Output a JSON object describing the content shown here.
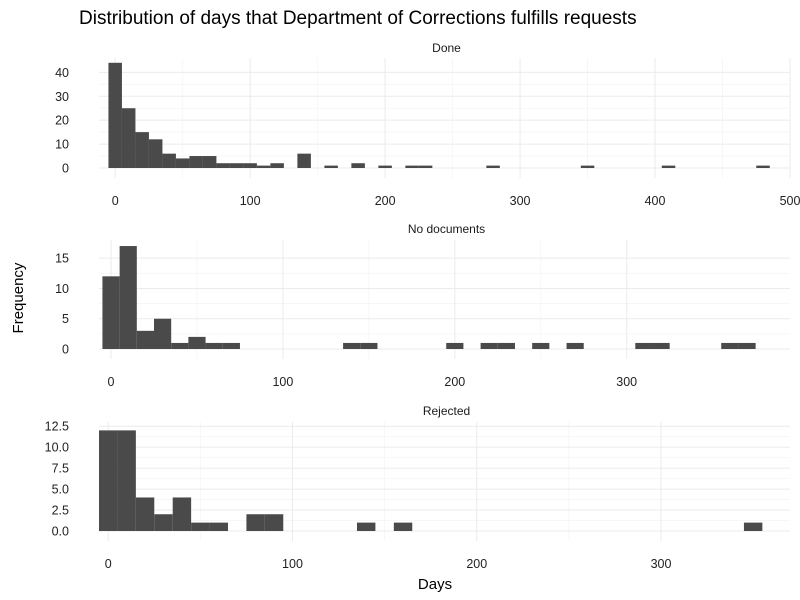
{
  "chart_data": {
    "type": "histogram",
    "title": "Distribution of days that Department of Corrections fulfills requests",
    "xlabel": "Days",
    "ylabel": "Frequency",
    "grid": true,
    "facet_scales": "free",
    "panels": [
      {
        "name": "Done",
        "bin_width": 10,
        "xlim": [
          -12,
          500
        ],
        "ylim": [
          0,
          46
        ],
        "x_breaks": [
          0,
          100,
          200,
          300,
          400,
          500
        ],
        "y_breaks": [
          0,
          10,
          20,
          30,
          40
        ],
        "y_tick_labels": [
          "0",
          "10",
          "20",
          "30",
          "40"
        ],
        "bins": [
          {
            "x": 0,
            "count": 44
          },
          {
            "x": 10,
            "count": 25
          },
          {
            "x": 20,
            "count": 15
          },
          {
            "x": 30,
            "count": 12
          },
          {
            "x": 40,
            "count": 6
          },
          {
            "x": 50,
            "count": 4
          },
          {
            "x": 60,
            "count": 5
          },
          {
            "x": 70,
            "count": 5
          },
          {
            "x": 80,
            "count": 2
          },
          {
            "x": 90,
            "count": 2
          },
          {
            "x": 100,
            "count": 2
          },
          {
            "x": 110,
            "count": 1
          },
          {
            "x": 120,
            "count": 2
          },
          {
            "x": 140,
            "count": 6
          },
          {
            "x": 160,
            "count": 1
          },
          {
            "x": 180,
            "count": 2
          },
          {
            "x": 200,
            "count": 1
          },
          {
            "x": 220,
            "count": 1
          },
          {
            "x": 230,
            "count": 1
          },
          {
            "x": 280,
            "count": 1
          },
          {
            "x": 350,
            "count": 1
          },
          {
            "x": 410,
            "count": 1
          },
          {
            "x": 480,
            "count": 1
          }
        ]
      },
      {
        "name": "No documents",
        "bin_width": 10,
        "xlim": [
          -7,
          395
        ],
        "ylim": [
          0,
          18
        ],
        "x_breaks": [
          0,
          100,
          200,
          300
        ],
        "y_breaks": [
          0,
          5,
          10,
          15
        ],
        "y_tick_labels": [
          "0",
          "5",
          "10",
          "15"
        ],
        "bins": [
          {
            "x": 0,
            "count": 12
          },
          {
            "x": 10,
            "count": 17
          },
          {
            "x": 20,
            "count": 3
          },
          {
            "x": 30,
            "count": 5
          },
          {
            "x": 40,
            "count": 1
          },
          {
            "x": 50,
            "count": 2
          },
          {
            "x": 60,
            "count": 1
          },
          {
            "x": 70,
            "count": 1
          },
          {
            "x": 140,
            "count": 1
          },
          {
            "x": 150,
            "count": 1
          },
          {
            "x": 200,
            "count": 1
          },
          {
            "x": 220,
            "count": 1
          },
          {
            "x": 230,
            "count": 1
          },
          {
            "x": 250,
            "count": 1
          },
          {
            "x": 270,
            "count": 1
          },
          {
            "x": 310,
            "count": 1
          },
          {
            "x": 320,
            "count": 1
          },
          {
            "x": 360,
            "count": 1
          },
          {
            "x": 370,
            "count": 1
          }
        ]
      },
      {
        "name": "Rejected",
        "bin_width": 10,
        "xlim": [
          -5,
          370
        ],
        "ylim": [
          0,
          13
        ],
        "x_breaks": [
          0,
          100,
          200,
          300
        ],
        "y_breaks": [
          0,
          2.5,
          5,
          7.5,
          10,
          12.5
        ],
        "y_tick_labels": [
          "0.0",
          "2.5",
          "5.0",
          "7.5",
          "10.0",
          "12.5"
        ],
        "bins": [
          {
            "x": 0,
            "count": 12
          },
          {
            "x": 10,
            "count": 12
          },
          {
            "x": 20,
            "count": 4
          },
          {
            "x": 30,
            "count": 2
          },
          {
            "x": 40,
            "count": 4
          },
          {
            "x": 50,
            "count": 1
          },
          {
            "x": 60,
            "count": 1
          },
          {
            "x": 80,
            "count": 2
          },
          {
            "x": 90,
            "count": 2
          },
          {
            "x": 140,
            "count": 1
          },
          {
            "x": 160,
            "count": 1
          },
          {
            "x": 350,
            "count": 1
          }
        ]
      }
    ]
  },
  "colors": {
    "bar": "#4a4a4a",
    "background": "#ffffff",
    "grid": "#ebebeb"
  }
}
